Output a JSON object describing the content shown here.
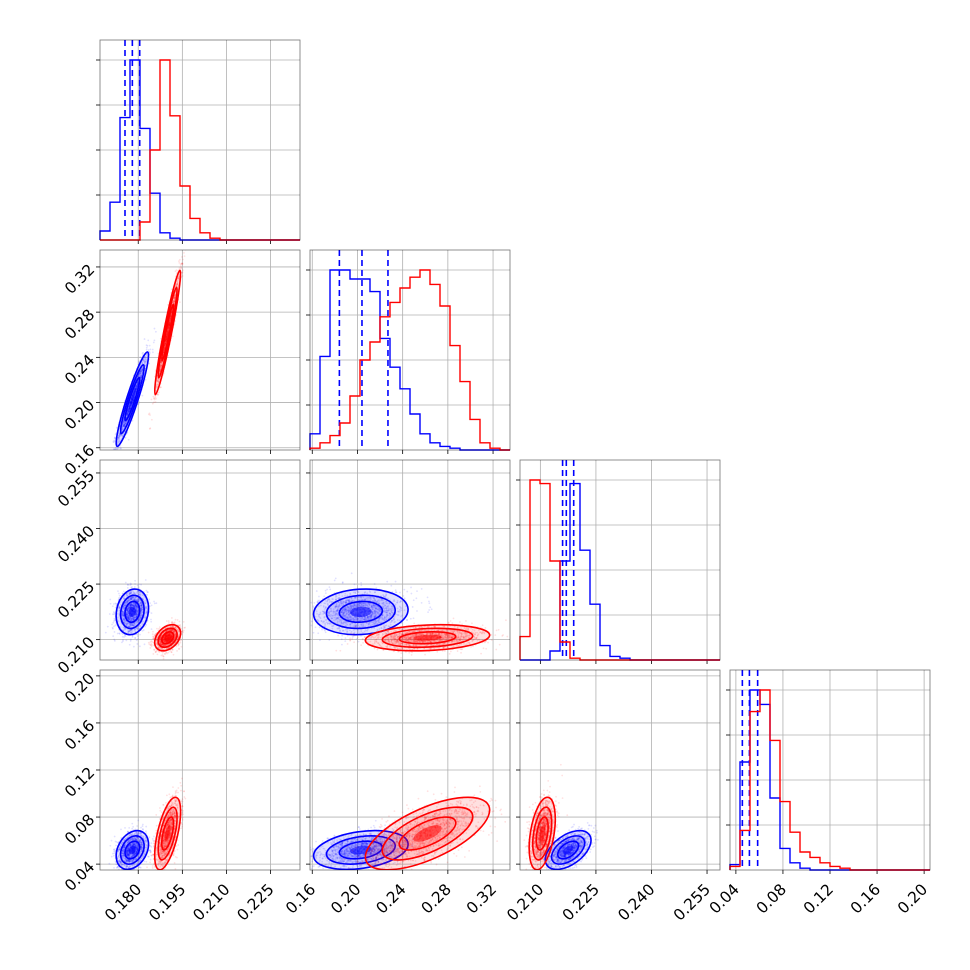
{
  "chart_data": {
    "type": "scatter",
    "kind": "corner-plot",
    "description_note": "",
    "grid": true,
    "parameter_ranges": [
      [
        0.167,
        0.235
      ],
      [
        0.158,
        0.335
      ],
      [
        0.2045,
        0.2585
      ],
      [
        0.035,
        0.205
      ]
    ],
    "tick_labels": [
      [
        "0.180",
        "0.195",
        "0.210",
        "0.225"
      ],
      [
        "0.16",
        "0.20",
        "0.24",
        "0.28",
        "0.32"
      ],
      [
        "0.210",
        "0.225",
        "0.240",
        "0.255"
      ],
      [
        "0.04",
        "0.08",
        "0.12",
        "0.16",
        "0.20"
      ]
    ],
    "series": [
      {
        "color": "#0000ff",
        "means": [
          0.178,
          0.203,
          0.2175,
          0.052
        ],
        "sds": [
          0.0025,
          0.019,
          0.0028,
          0.0075
        ],
        "corr": [
          [
            1,
            0.93,
            0.15,
            0.3
          ],
          [
            0.93,
            1,
            0.1,
            0.3
          ],
          [
            0.15,
            0.1,
            1,
            0.5
          ],
          [
            0.3,
            0.3,
            0.5,
            1
          ]
        ],
        "quantiles": [
          [
            0.1755,
            0.178,
            0.1805
          ],
          [
            0.184,
            0.204,
            0.227
          ],
          [
            0.216,
            0.217,
            0.219
          ],
          [
            0.0455,
            0.0515,
            0.0585
          ]
        ],
        "histograms": [
          [
            0.05,
            0.21,
            0.68,
            1.0,
            0.62,
            0.26,
            0.04,
            0.01,
            0,
            0,
            0,
            0,
            0,
            0,
            0,
            0,
            0,
            0,
            0,
            0
          ],
          [
            0.09,
            0.52,
            1.0,
            1.0,
            0.95,
            0.95,
            0.88,
            0.62,
            0.46,
            0.34,
            0.2,
            0.09,
            0.04,
            0.02,
            0.01,
            0,
            0,
            0,
            0,
            0
          ],
          [
            0,
            0,
            0,
            0.05,
            0.55,
            0.98,
            0.61,
            0.31,
            0.08,
            0.02,
            0.01,
            0,
            0,
            0,
            0,
            0,
            0,
            0,
            0,
            0
          ],
          [
            0.03,
            0.6,
            1.0,
            0.92,
            0.4,
            0.12,
            0.04,
            0.01,
            0,
            0,
            0,
            0,
            0,
            0,
            0,
            0,
            0,
            0,
            0,
            0
          ]
        ]
      },
      {
        "color": "#ff0000",
        "means": [
          0.19,
          0.262,
          0.2105,
          0.066
        ],
        "sds": [
          0.002,
          0.025,
          0.0016,
          0.014
        ],
        "corr": [
          [
            1,
            0.95,
            0.35,
            0.6
          ],
          [
            0.95,
            1,
            0.2,
            0.65
          ],
          [
            0.35,
            0.2,
            1,
            0.4
          ],
          [
            0.6,
            0.65,
            0.4,
            1
          ]
        ],
        "quantiles": [],
        "histograms": [
          [
            0,
            0,
            0,
            0,
            0.1,
            0.5,
            1.0,
            0.69,
            0.3,
            0.12,
            0.04,
            0.01,
            0,
            0,
            0,
            0,
            0,
            0,
            0,
            0
          ],
          [
            0.01,
            0.04,
            0.08,
            0.15,
            0.3,
            0.5,
            0.6,
            0.74,
            0.82,
            0.9,
            0.96,
            1.0,
            0.92,
            0.8,
            0.58,
            0.38,
            0.17,
            0.04,
            0.01,
            0
          ],
          [
            0.13,
            1.0,
            0.98,
            0.55,
            0.1,
            0.01,
            0,
            0,
            0,
            0,
            0,
            0,
            0,
            0,
            0,
            0,
            0,
            0,
            0,
            0
          ],
          [
            0.02,
            0.22,
            0.88,
            1.0,
            0.72,
            0.38,
            0.21,
            0.1,
            0.07,
            0.04,
            0.02,
            0.01,
            0,
            0,
            0,
            0,
            0,
            0,
            0,
            0
          ]
        ]
      }
    ]
  }
}
